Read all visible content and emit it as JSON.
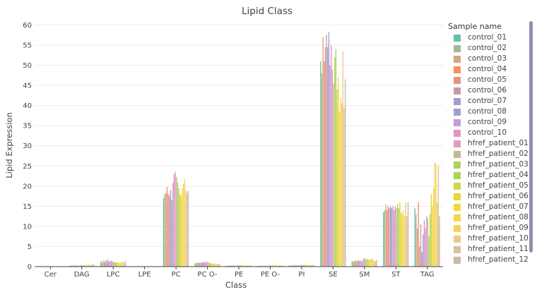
{
  "chart_data": {
    "type": "bar",
    "title": "Lipid Class",
    "xlabel": "Class",
    "ylabel": "Lipid Expression",
    "ylim": [
      0,
      62
    ],
    "yticks": [
      0,
      5,
      10,
      15,
      20,
      25,
      30,
      35,
      40,
      45,
      50,
      55,
      60
    ],
    "grid": true,
    "legend_title": "Sample name",
    "legend_position": "right",
    "categories": [
      "Cer",
      "DAG",
      "LPC",
      "LPE",
      "PC",
      "PC O-",
      "PE",
      "PE O-",
      "PI",
      "SE",
      "SM",
      "ST",
      "TAG"
    ],
    "series": [
      {
        "name": "control_01",
        "color": "#66c2a5",
        "values": [
          0.1,
          0.2,
          1.3,
          0.1,
          17.0,
          0.8,
          0.2,
          0.2,
          0.3,
          51.0,
          1.3,
          13.5,
          14.5
        ]
      },
      {
        "name": "control_02",
        "color": "#a6b893",
        "values": [
          0.1,
          0.2,
          0.9,
          0.1,
          18.0,
          0.9,
          0.2,
          0.2,
          0.3,
          48.0,
          1.2,
          14.0,
          13.0
        ]
      },
      {
        "name": "control_03",
        "color": "#d2a583",
        "values": [
          0.1,
          0.3,
          1.5,
          0.1,
          18.3,
          1.0,
          0.3,
          0.2,
          0.3,
          57.0,
          1.4,
          15.5,
          9.5
        ]
      },
      {
        "name": "control_04",
        "color": "#fc8d62",
        "values": [
          0.1,
          0.2,
          1.1,
          0.1,
          19.8,
          0.9,
          0.2,
          0.2,
          0.3,
          51.0,
          1.5,
          14.0,
          16.0
        ]
      },
      {
        "name": "control_05",
        "color": "#e5927e",
        "values": [
          0.1,
          0.3,
          1.6,
          0.1,
          18.0,
          1.0,
          0.3,
          0.2,
          0.3,
          54.5,
          1.3,
          15.0,
          5.0
        ]
      },
      {
        "name": "control_06",
        "color": "#c39ba8",
        "values": [
          0.1,
          0.2,
          1.3,
          0.1,
          17.5,
          0.9,
          0.2,
          0.2,
          0.3,
          57.5,
          1.6,
          14.5,
          10.5
        ]
      },
      {
        "name": "control_07",
        "color": "#a0a0c6",
        "values": [
          0.1,
          0.3,
          1.8,
          0.1,
          19.0,
          1.1,
          0.3,
          0.2,
          0.3,
          54.5,
          1.4,
          15.0,
          3.5
        ]
      },
      {
        "name": "control_08",
        "color": "#a09fd0",
        "values": [
          0.1,
          0.2,
          1.2,
          0.1,
          16.5,
          1.0,
          0.2,
          0.2,
          0.3,
          58.2,
          1.5,
          14.5,
          8.0
        ]
      },
      {
        "name": "control_09",
        "color": "#c79bd0",
        "values": [
          0.1,
          0.2,
          1.4,
          0.1,
          20.8,
          1.2,
          0.2,
          0.2,
          0.3,
          50.0,
          1.3,
          15.0,
          11.5
        ]
      },
      {
        "name": "control_10",
        "color": "#e193c4",
        "values": [
          0.1,
          0.3,
          1.5,
          0.1,
          23.0,
          1.0,
          0.3,
          0.2,
          0.3,
          55.0,
          1.6,
          14.0,
          9.5
        ]
      },
      {
        "name": "hfref_patient_01",
        "color": "#e49aba",
        "values": [
          0.1,
          0.4,
          1.3,
          0.1,
          23.5,
          1.3,
          0.3,
          0.3,
          0.4,
          49.0,
          2.0,
          15.0,
          12.5
        ]
      },
      {
        "name": "hfref_patient_02",
        "color": "#c4b792",
        "values": [
          0.1,
          0.4,
          1.2,
          0.1,
          22.3,
          1.1,
          0.3,
          0.3,
          0.4,
          45.5,
          2.1,
          14.5,
          12.0
        ]
      },
      {
        "name": "hfref_patient_03",
        "color": "#b0cf5c",
        "values": [
          0.1,
          0.3,
          1.1,
          0.1,
          21.0,
          0.9,
          0.3,
          0.3,
          0.4,
          52.0,
          1.8,
          15.5,
          7.5
        ]
      },
      {
        "name": "hfref_patient_04",
        "color": "#a6d854",
        "values": [
          0.1,
          0.3,
          1.0,
          0.1,
          19.5,
          0.9,
          0.3,
          0.3,
          0.4,
          54.0,
          1.9,
          14.5,
          13.0
        ]
      },
      {
        "name": "hfref_patient_05",
        "color": "#ccd747",
        "values": [
          0.1,
          0.4,
          1.1,
          0.1,
          18.0,
          0.8,
          0.3,
          0.3,
          0.4,
          44.0,
          1.7,
          16.0,
          18.0
        ]
      },
      {
        "name": "hfref_patient_06",
        "color": "#e8d63a",
        "values": [
          0.1,
          0.3,
          1.0,
          0.1,
          17.5,
          0.7,
          0.3,
          0.3,
          0.4,
          47.0,
          1.6,
          13.5,
          15.0
        ]
      },
      {
        "name": "hfref_patient_07",
        "color": "#f7d837",
        "values": [
          0.1,
          0.4,
          0.9,
          0.1,
          19.5,
          0.8,
          0.3,
          0.3,
          0.4,
          38.5,
          1.9,
          13.0,
          19.5
        ]
      },
      {
        "name": "hfref_patient_08",
        "color": "#f8d549",
        "values": [
          0.1,
          0.5,
          1.0,
          0.1,
          20.5,
          0.8,
          0.3,
          0.3,
          0.4,
          42.0,
          2.0,
          14.0,
          25.8
        ]
      },
      {
        "name": "hfref_patient_09",
        "color": "#f4d063",
        "values": [
          0.1,
          0.4,
          1.2,
          0.1,
          21.7,
          0.7,
          0.3,
          0.3,
          0.4,
          40.5,
          1.8,
          12.5,
          25.5
        ]
      },
      {
        "name": "hfref_patient_10",
        "color": "#ebc987",
        "values": [
          0.1,
          0.6,
          1.1,
          0.1,
          19.0,
          0.7,
          0.3,
          0.3,
          0.4,
          53.5,
          1.5,
          16.0,
          16.0
        ]
      },
      {
        "name": "hfref_patient_11",
        "color": "#dbc09c",
        "values": [
          0.1,
          0.5,
          1.0,
          0.1,
          18.3,
          0.6,
          0.3,
          0.3,
          0.4,
          39.5,
          1.3,
          12.5,
          25.0
        ]
      },
      {
        "name": "hfref_patient_12",
        "color": "#c6b9a8",
        "values": [
          0.1,
          0.5,
          1.4,
          0.1,
          18.8,
          0.6,
          0.3,
          0.3,
          0.4,
          46.5,
          1.7,
          16.0,
          12.5
        ]
      }
    ]
  }
}
